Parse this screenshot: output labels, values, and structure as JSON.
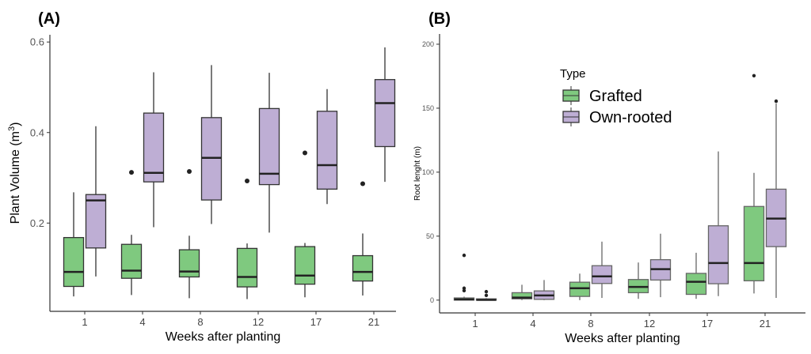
{
  "colors": {
    "Grafted": "#7fc97f",
    "Own-rooted": "#beaed4",
    "outline": "#333333"
  },
  "chart_data": [
    {
      "type": "boxplot",
      "panel_label": "(A)",
      "xlabel": "Weeks after planting",
      "ylabel": "Plant Volume (m",
      "ylabel_sup": "3",
      "ylabel_close": ")",
      "ylim": [
        0.005,
        0.616
      ],
      "yticks": [
        0.2,
        0.4,
        0.6
      ],
      "ytick_labels": [
        "0.2",
        "0.4",
        "0.6"
      ],
      "categories": [
        "1",
        "4",
        "8",
        "12",
        "17",
        "21"
      ],
      "grid": false,
      "series": [
        {
          "name": "Grafted",
          "boxes": [
            {
              "low": 0.038,
              "q1": 0.06,
              "median": 0.092,
              "q3": 0.168,
              "high": 0.268,
              "outliers": []
            },
            {
              "low": 0.041,
              "q1": 0.078,
              "median": 0.095,
              "q3": 0.153,
              "high": 0.174,
              "outliers": [
                0.312
              ]
            },
            {
              "low": 0.034,
              "q1": 0.081,
              "median": 0.093,
              "q3": 0.141,
              "high": 0.172,
              "outliers": [
                0.314
              ]
            },
            {
              "low": 0.032,
              "q1": 0.059,
              "median": 0.081,
              "q3": 0.144,
              "high": 0.155,
              "outliers": [
                0.293
              ]
            },
            {
              "low": 0.036,
              "q1": 0.065,
              "median": 0.084,
              "q3": 0.148,
              "high": 0.156,
              "outliers": [
                0.355
              ]
            },
            {
              "low": 0.04,
              "q1": 0.072,
              "median": 0.092,
              "q3": 0.128,
              "high": 0.177,
              "outliers": [
                0.287
              ]
            }
          ]
        },
        {
          "name": "Own-rooted",
          "boxes": [
            {
              "low": 0.082,
              "q1": 0.145,
              "median": 0.25,
              "q3": 0.263,
              "high": 0.414,
              "outliers": []
            },
            {
              "low": 0.191,
              "q1": 0.291,
              "median": 0.311,
              "q3": 0.443,
              "high": 0.533,
              "outliers": []
            },
            {
              "low": 0.198,
              "q1": 0.251,
              "median": 0.344,
              "q3": 0.433,
              "high": 0.549,
              "outliers": []
            },
            {
              "low": 0.179,
              "q1": 0.285,
              "median": 0.309,
              "q3": 0.453,
              "high": 0.532,
              "outliers": []
            },
            {
              "low": 0.242,
              "q1": 0.275,
              "median": 0.328,
              "q3": 0.447,
              "high": 0.496,
              "outliers": []
            },
            {
              "low": 0.291,
              "q1": 0.369,
              "median": 0.465,
              "q3": 0.517,
              "high": 0.588,
              "outliers": []
            }
          ]
        }
      ]
    },
    {
      "type": "boxplot",
      "panel_label": "(B)",
      "xlabel": "Weeks after planting",
      "ylabel": "Root lenght (m)",
      "ylim": [
        -10,
        208
      ],
      "yticks": [
        0,
        50,
        100,
        150,
        200
      ],
      "ytick_labels": [
        "0",
        "50",
        "100",
        "150",
        "200"
      ],
      "categories": [
        "1",
        "4",
        "8",
        "12",
        "17",
        "21"
      ],
      "grid": false,
      "legend": {
        "title": "Type",
        "placement": "top-center",
        "entries": [
          "Grafted",
          "Own-rooted"
        ]
      },
      "series": [
        {
          "name": "Grafted",
          "boxes": [
            {
              "low": 0,
              "q1": 0,
              "median": 0.6,
              "q3": 1.7,
              "high": 2.7,
              "outliers": [
                35,
                9.3,
                7.4
              ]
            },
            {
              "low": 0,
              "q1": 1,
              "median": 2,
              "q3": 5.8,
              "high": 12,
              "outliers": []
            },
            {
              "low": 0,
              "q1": 2.9,
              "median": 9.3,
              "q3": 14,
              "high": 20.7,
              "outliers": []
            },
            {
              "low": 1,
              "q1": 5.8,
              "median": 10.3,
              "q3": 16.1,
              "high": 29.4,
              "outliers": []
            },
            {
              "low": 1,
              "q1": 4.5,
              "median": 14.3,
              "q3": 20.9,
              "high": 37,
              "outliers": []
            },
            {
              "low": 5.2,
              "q1": 15.1,
              "median": 29,
              "q3": 73.2,
              "high": 99.5,
              "outliers": [
                175.4
              ]
            }
          ]
        },
        {
          "name": "Own-rooted",
          "boxes": [
            {
              "low": 0,
              "q1": 0,
              "median": 0.2,
              "q3": 1,
              "high": 1.6,
              "outliers": [
                6.6,
                3.7
              ]
            },
            {
              "low": 0,
              "q1": 0.6,
              "median": 3.7,
              "q3": 7.2,
              "high": 15.7,
              "outliers": []
            },
            {
              "low": 1.7,
              "q1": 13,
              "median": 18.6,
              "q3": 26.9,
              "high": 45.7,
              "outliers": []
            },
            {
              "low": 2.3,
              "q1": 15.7,
              "median": 24.2,
              "q3": 31.6,
              "high": 51.9,
              "outliers": []
            },
            {
              "low": 3.1,
              "q1": 12.8,
              "median": 29,
              "q3": 58.1,
              "high": 116.2,
              "outliers": []
            },
            {
              "low": 1.7,
              "q1": 41.8,
              "median": 63.7,
              "q3": 86.7,
              "high": 153.7,
              "outliers": [
                155.5
              ]
            }
          ]
        }
      ]
    }
  ]
}
